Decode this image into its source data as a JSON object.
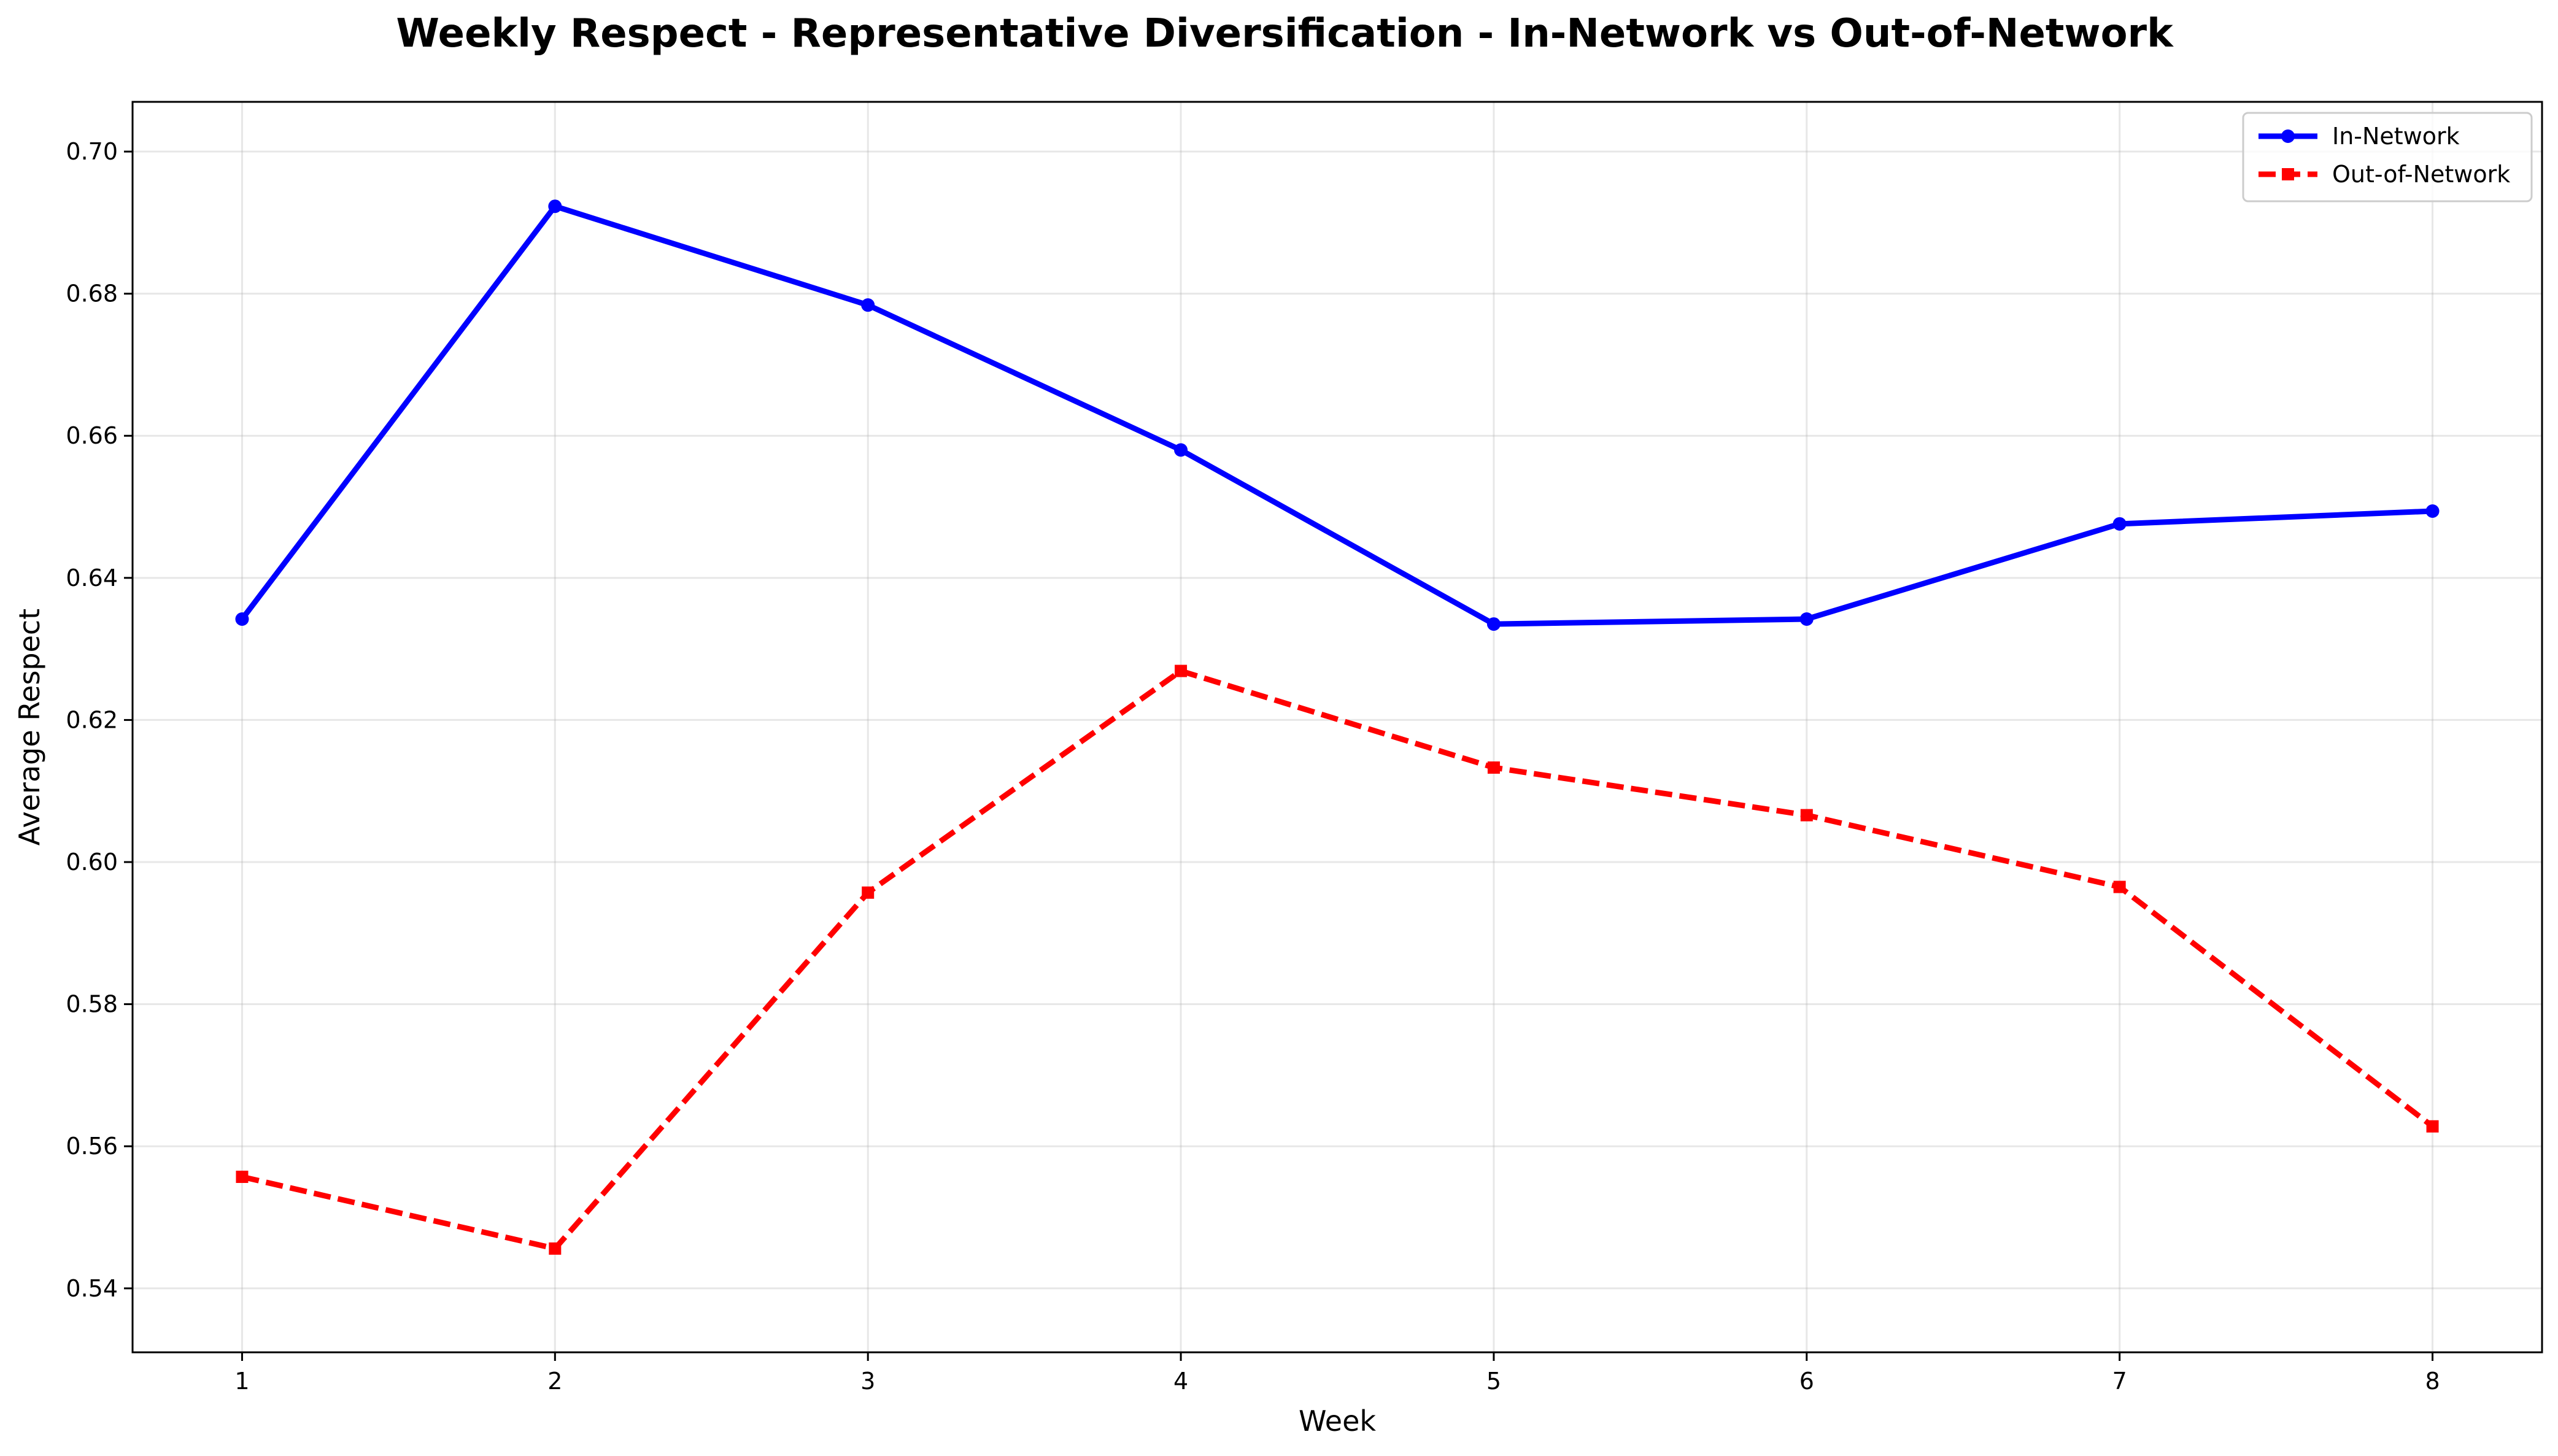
{
  "chart_data": {
    "type": "line",
    "title": "Weekly Respect - Representative Diversification - In-Network vs Out-of-Network",
    "xlabel": "Week",
    "ylabel": "Average Respect",
    "x": [
      1,
      2,
      3,
      4,
      5,
      6,
      7,
      8
    ],
    "xticks": [
      "1",
      "2",
      "3",
      "4",
      "5",
      "6",
      "7",
      "8"
    ],
    "yticks": [
      "0.54",
      "0.56",
      "0.58",
      "0.60",
      "0.62",
      "0.64",
      "0.66",
      "0.68",
      "0.70"
    ],
    "xlim": [
      0.65,
      8.35
    ],
    "ylim": [
      0.531,
      0.707
    ],
    "grid": true,
    "legend_position": "top-right",
    "series": [
      {
        "name": "In-Network",
        "values": [
          0.6342,
          0.6923,
          0.6784,
          0.658,
          0.6335,
          0.6342,
          0.6476,
          0.6494
        ],
        "color": "#0000ff",
        "line_style": "solid",
        "marker": "circle"
      },
      {
        "name": "Out-of-Network",
        "values": [
          0.5557,
          0.5456,
          0.5957,
          0.6269,
          0.6133,
          0.6066,
          0.5965,
          0.5628
        ],
        "color": "#ff0000",
        "line_style": "dashed",
        "marker": "square"
      }
    ]
  }
}
